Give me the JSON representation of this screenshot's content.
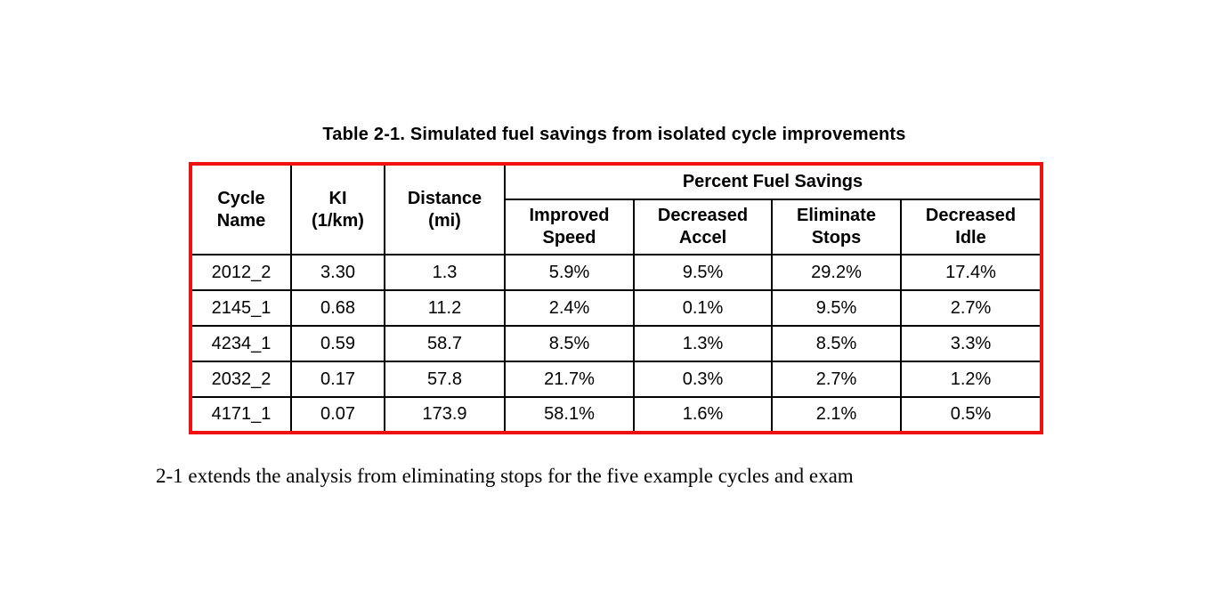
{
  "page": {
    "caption": "Table 2-1. Simulated fuel savings from isolated cycle improvements",
    "body_text": "2-1 extends the analysis from eliminating stops for the five example cycles and exam"
  },
  "table": {
    "border_color": "#ee1111",
    "group_header": "Percent Fuel Savings",
    "fixed_columns": [
      "Cycle\nName",
      "KI\n(1/km)",
      "Distance\n(mi)"
    ],
    "sub_columns": [
      "Improved\nSpeed",
      "Decreased\nAccel",
      "Eliminate\nStops",
      "Decreased\nIdle"
    ],
    "rows": [
      [
        "2012_2",
        "3.30",
        "1.3",
        "5.9%",
        "9.5%",
        "29.2%",
        "17.4%"
      ],
      [
        "2145_1",
        "0.68",
        "11.2",
        "2.4%",
        "0.1%",
        "9.5%",
        "2.7%"
      ],
      [
        "4234_1",
        "0.59",
        "58.7",
        "8.5%",
        "1.3%",
        "8.5%",
        "3.3%"
      ],
      [
        "2032_2",
        "0.17",
        "57.8",
        "21.7%",
        "0.3%",
        "2.7%",
        "1.2%"
      ],
      [
        "4171_1",
        "0.07",
        "173.9",
        "58.1%",
        "1.6%",
        "2.1%",
        "0.5%"
      ]
    ]
  }
}
